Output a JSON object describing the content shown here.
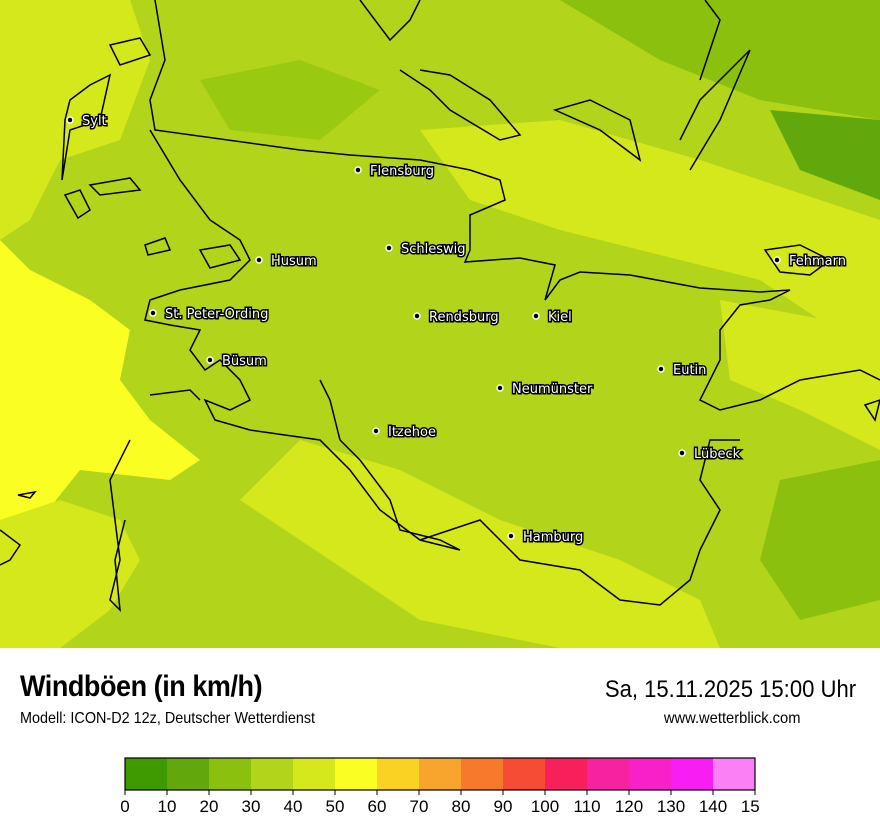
{
  "header": {
    "title": "Windböen (in km/h)",
    "subtitle": "Modell: ICON-D2 12z, Deutscher Wetterdienst",
    "datetime": "Sa, 15.11.2025 15:00 Uhr",
    "website": "www.wetterblick.com"
  },
  "map": {
    "cities": [
      {
        "name": "Sylt"
      },
      {
        "name": "Flensburg"
      },
      {
        "name": "Schleswig"
      },
      {
        "name": "Husum"
      },
      {
        "name": "Fehmarn"
      },
      {
        "name": "St. Peter-Ording"
      },
      {
        "name": "Rendsburg"
      },
      {
        "name": "Kiel"
      },
      {
        "name": "Büsum"
      },
      {
        "name": "Eutin"
      },
      {
        "name": "Neumünster"
      },
      {
        "name": "Itzehoe"
      },
      {
        "name": "Lübeck"
      },
      {
        "name": "Hamburg"
      }
    ]
  },
  "legend": {
    "ticks": [
      "0",
      "10",
      "20",
      "30",
      "40",
      "50",
      "60",
      "70",
      "80",
      "90",
      "100",
      "110",
      "120",
      "130",
      "140",
      "150"
    ],
    "colors": [
      "#3f9900",
      "#62a80c",
      "#8bc10e",
      "#b2d41a",
      "#d5e81c",
      "#fafe22",
      "#f9d224",
      "#f7a52c",
      "#f77a2c",
      "#f64c34",
      "#f7205a",
      "#f722a0",
      "#f820c8",
      "#f81ef3",
      "#fb80f6"
    ]
  }
}
